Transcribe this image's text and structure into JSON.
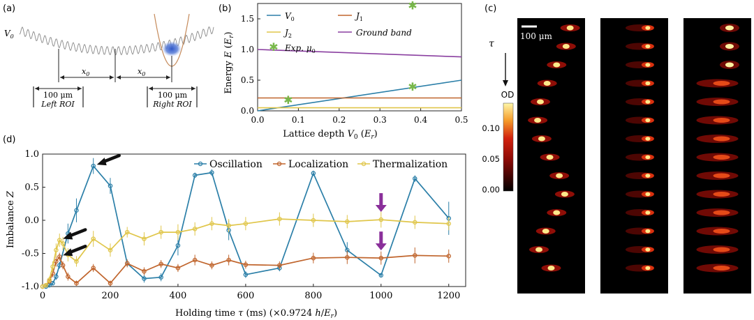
{
  "panels": {
    "a": {
      "label": "(a)",
      "v0_label": "V",
      "v0_sub": "0",
      "x0_label": "x",
      "x0_sub": "0",
      "left_scale": "100 μm",
      "left_roi": "Left ROI",
      "right_scale": "100 μm",
      "right_roi": "Right ROI"
    },
    "b": {
      "label": "(b)"
    },
    "c": {
      "label": "(c)",
      "scalebar": "100 μm",
      "tau": "τ",
      "cbar_title": "OD",
      "cbar_ticks": [
        "0.10",
        "0.05",
        "0.00"
      ],
      "colors": {
        "low": "#000000",
        "mid": "#c0140c",
        "high": "#fff7a8"
      }
    },
    "d": {
      "label": "(d)"
    }
  },
  "chart_data": [
    {
      "id": "b",
      "type": "line",
      "title": "",
      "xlabel": "Lattice depth V0 (Er)",
      "ylabel": "Energy E (Er)",
      "xlim": [
        0,
        0.5
      ],
      "ylim": [
        0,
        1.75
      ],
      "xticks": [
        "0.0",
        "0.1",
        "0.2",
        "0.3",
        "0.4",
        "0.5"
      ],
      "yticks": [
        "0.0",
        "0.5",
        "1.0",
        "1.5"
      ],
      "legend": [
        "V0",
        "J1",
        "J2",
        "Ground band",
        "Exp. μ0"
      ],
      "series": [
        {
          "name": "V0",
          "color": "#2b7fa8",
          "x": [
            0,
            0.5
          ],
          "y": [
            0,
            0.5
          ]
        },
        {
          "name": "J1",
          "color": "#c0652d",
          "x": [
            0,
            0.5
          ],
          "y": [
            0.21,
            0.21
          ]
        },
        {
          "name": "J2",
          "color": "#e0c64a",
          "x": [
            0,
            0.5
          ],
          "y": [
            0.05,
            0.05
          ]
        },
        {
          "name": "Ground band",
          "color": "#8a3fa0",
          "x": [
            0,
            0.5
          ],
          "y": [
            1.0,
            0.88
          ]
        }
      ],
      "scatter": {
        "name": "Exp. μ0",
        "color": "#78b84a",
        "x": [
          0.075,
          0.38,
          0.38
        ],
        "y": [
          0.18,
          0.4,
          1.72
        ]
      }
    },
    {
      "id": "d",
      "type": "line",
      "title": "",
      "xlabel": "Holding time τ (ms) (×0.9724 h/Er)",
      "ylabel": "Imbalance Z",
      "xlim": [
        0,
        1250
      ],
      "ylim": [
        -1.0,
        1.0
      ],
      "xticks": [
        "0",
        "200",
        "400",
        "600",
        "800",
        "1000",
        "1200"
      ],
      "yticks": [
        "1.0",
        "0.5",
        "0.0",
        "-0.5",
        "-1.0"
      ],
      "legend": [
        "Oscillation",
        "Localization",
        "Thermalization"
      ],
      "series": [
        {
          "name": "Oscillation",
          "color": "#2b7fa8",
          "x": [
            0,
            10,
            20,
            30,
            40,
            50,
            75,
            100,
            150,
            200,
            250,
            300,
            350,
            400,
            450,
            500,
            550,
            600,
            700,
            800,
            900,
            1000,
            1100,
            1200
          ],
          "y": [
            -1.0,
            -1.0,
            -0.98,
            -0.95,
            -0.85,
            -0.68,
            -0.2,
            0.15,
            0.82,
            0.52,
            -0.65,
            -0.88,
            -0.86,
            -0.38,
            0.68,
            0.72,
            -0.15,
            -0.82,
            -0.72,
            0.71,
            -0.45,
            -0.83,
            0.63,
            0.03
          ],
          "err": [
            0.02,
            0.02,
            0.03,
            0.03,
            0.05,
            0.05,
            0.15,
            0.18,
            0.12,
            0.12,
            0.05,
            0.06,
            0.06,
            0.15,
            0.04,
            0.05,
            0.15,
            0.05,
            0.05,
            0.04,
            0.12,
            0.03,
            0.05,
            0.25
          ]
        },
        {
          "name": "Localization",
          "color": "#c0652d",
          "x": [
            0,
            10,
            20,
            30,
            40,
            50,
            60,
            75,
            100,
            150,
            200,
            250,
            300,
            350,
            400,
            450,
            500,
            550,
            600,
            700,
            800,
            900,
            1000,
            1100,
            1200
          ],
          "y": [
            -1.0,
            -0.98,
            -0.92,
            -0.8,
            -0.62,
            -0.55,
            -0.68,
            -0.85,
            -0.95,
            -0.72,
            -0.95,
            -0.65,
            -0.77,
            -0.66,
            -0.72,
            -0.6,
            -0.68,
            -0.6,
            -0.67,
            -0.68,
            -0.57,
            -0.56,
            -0.57,
            -0.53,
            -0.54
          ],
          "err": [
            0.02,
            0.03,
            0.04,
            0.06,
            0.08,
            0.06,
            0.06,
            0.06,
            0.04,
            0.06,
            0.04,
            0.06,
            0.06,
            0.06,
            0.06,
            0.08,
            0.06,
            0.08,
            0.06,
            0.06,
            0.08,
            0.1,
            0.1,
            0.12,
            0.1
          ],
          "highlight_x": [
            1000
          ]
        },
        {
          "name": "Thermalization",
          "color": "#e0c64a",
          "x": [
            0,
            10,
            20,
            30,
            40,
            50,
            60,
            75,
            100,
            150,
            200,
            250,
            300,
            350,
            400,
            450,
            500,
            550,
            600,
            700,
            800,
            900,
            1000,
            1100,
            1200
          ],
          "y": [
            -1.0,
            -0.98,
            -0.9,
            -0.7,
            -0.45,
            -0.3,
            -0.35,
            -0.52,
            -0.62,
            -0.28,
            -0.45,
            -0.18,
            -0.28,
            -0.18,
            -0.18,
            -0.13,
            -0.05,
            -0.08,
            -0.05,
            0.02,
            0.0,
            -0.02,
            0.01,
            -0.03,
            -0.05
          ],
          "err": [
            0.02,
            0.03,
            0.05,
            0.08,
            0.1,
            0.1,
            0.1,
            0.1,
            0.08,
            0.12,
            0.1,
            0.08,
            0.1,
            0.1,
            0.12,
            0.1,
            0.1,
            0.1,
            0.1,
            0.1,
            0.1,
            0.1,
            0.12,
            0.1,
            0.1
          ]
        }
      ],
      "annotations": [
        {
          "type": "black-arrow",
          "target_series": "Oscillation",
          "target_x": 150,
          "target_y": 0.82
        },
        {
          "type": "black-arrow",
          "target_series": "Thermalization",
          "target_x": 50,
          "target_y": -0.3
        },
        {
          "type": "black-arrow",
          "target_series": "Localization",
          "target_x": 50,
          "target_y": -0.55
        },
        {
          "type": "purple-arrow",
          "target_series": "Thermalization",
          "target_x": 1000,
          "target_y": 0.01
        },
        {
          "type": "purple-arrow",
          "target_series": "Localization",
          "target_x": 1000,
          "target_y": -0.57
        }
      ]
    }
  ]
}
